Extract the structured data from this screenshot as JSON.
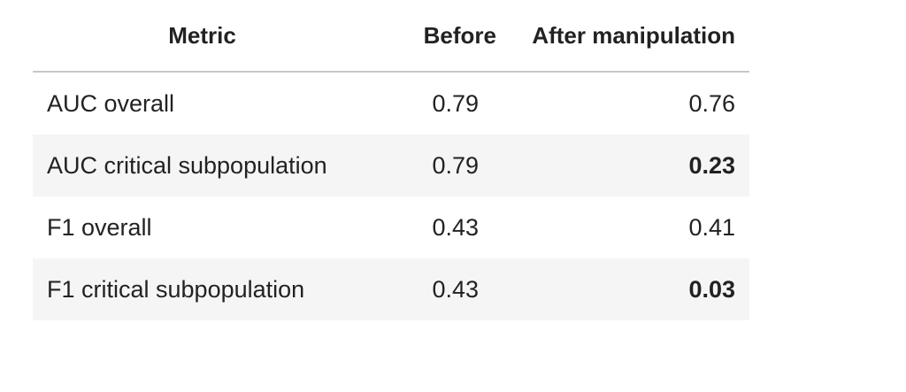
{
  "table": {
    "headers": [
      "Metric",
      "Before",
      "After manipulation"
    ],
    "rows": [
      [
        "AUC overall",
        0.79,
        0.76
      ],
      [
        "AUC critical subpopulation",
        0.79,
        0.23
      ],
      [
        "F1 overall",
        0.43,
        0.41
      ],
      [
        "F1 critical subpopulation",
        0.43,
        0.03
      ]
    ]
  }
}
